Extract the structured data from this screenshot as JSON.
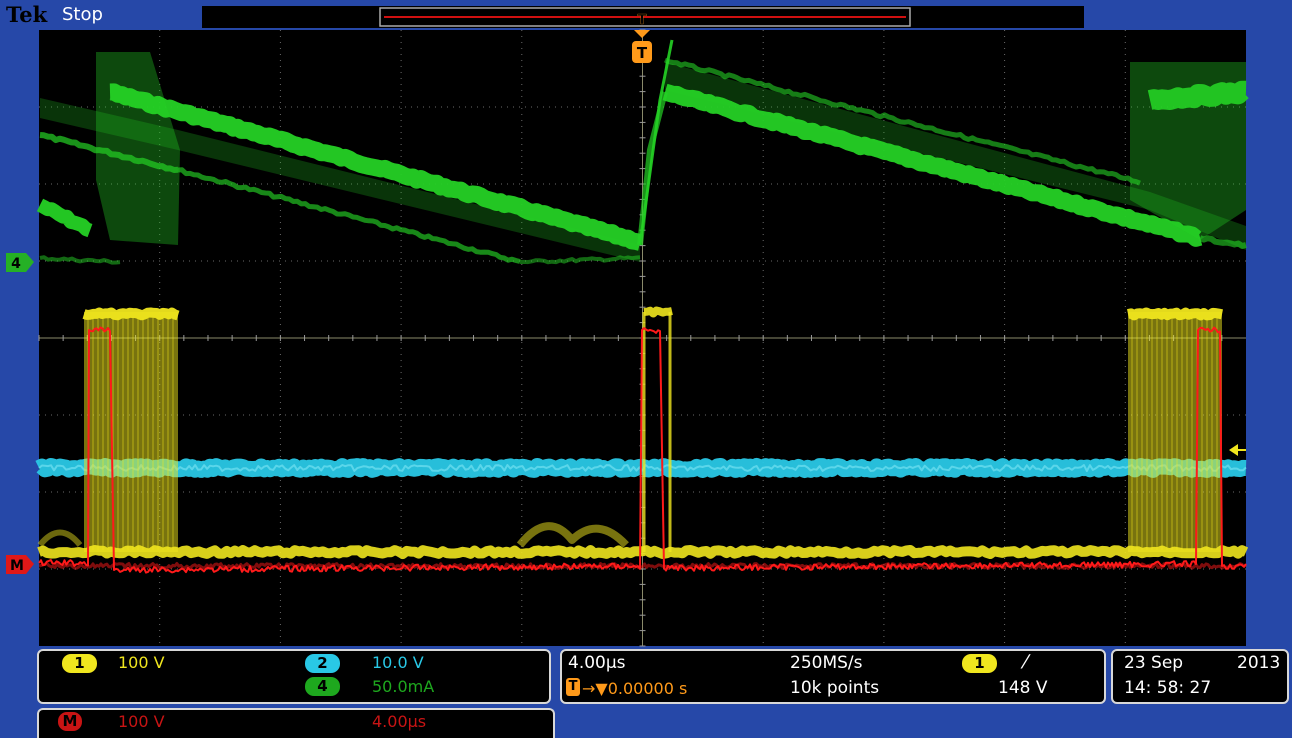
{
  "colors": {
    "frame": "#2648a8",
    "screen": "#000000",
    "ch1": "#f0e61e",
    "ch2": "#29c8e6",
    "ch4": "#25d125",
    "math": "#ff1a1a",
    "trigger": "#ff9a1a"
  },
  "header": {
    "brand": "Tek",
    "status": "Stop",
    "trigger_marker": "T"
  },
  "markers": {
    "ch4": "4",
    "math": "M",
    "trigger_label": "T"
  },
  "readouts": {
    "ch1": {
      "badge": "1",
      "scale": "100 V"
    },
    "ch2": {
      "badge": "2",
      "scale": "10.0 V"
    },
    "ch4": {
      "badge": "4",
      "scale": "50.0mA"
    },
    "math": {
      "badge": "M",
      "scale": "100 V",
      "timebase": "4.00µs"
    },
    "horizontal": {
      "timebase": "4.00µs",
      "sample_rate": "250MS/s",
      "record_length": "10k points",
      "trigger_position_label": "T",
      "trigger_delay": "→▼0.00000 s"
    },
    "trigger": {
      "source_badge": "1",
      "slope": "⁄",
      "level": "148 V"
    },
    "datetime": {
      "date": "23 Sep",
      "year": "2013",
      "time": "14: 58: 27"
    }
  }
}
